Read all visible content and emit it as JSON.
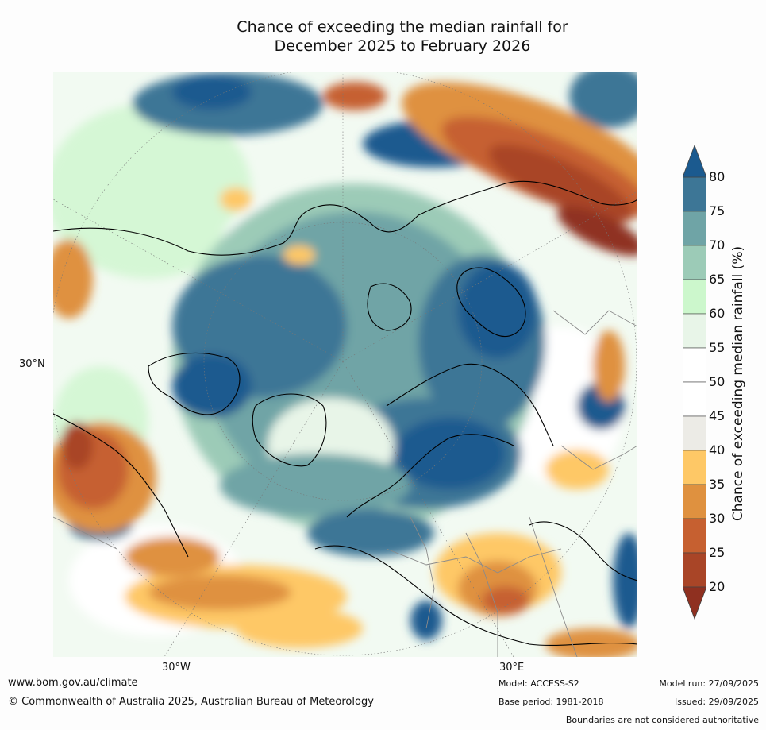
{
  "title_line1": "Chance of exceeding the median rainfall for",
  "title_line2": "December 2025 to February 2026",
  "map": {
    "lat_label": "30°N",
    "lon_labels": [
      "30°W",
      "30°E"
    ]
  },
  "legend": {
    "title": "Chance of exceeding median rainfall (%)",
    "ticks": [
      "80",
      "75",
      "70",
      "65",
      "60",
      "55",
      "50",
      "45",
      "40",
      "35",
      "30",
      "25",
      "20"
    ],
    "colors": {
      "above80": "#1b5a8f",
      "75_80": "#3d7696",
      "70_75": "#6fa4a6",
      "65_70": "#9ccbb7",
      "60_65": "#ccf7cc",
      "55_60": "#e8f5e8",
      "50_55": "#ffffff",
      "45_50": "#ffffff",
      "40_45": "#ecebe6",
      "35_40": "#fec866",
      "30_35": "#df913f",
      "25_30": "#c66030",
      "20_25": "#a94527",
      "below20": "#8f3020"
    }
  },
  "footer": {
    "url": "www.bom.gov.au/climate",
    "copyright": "© Commonwealth of Australia 2025, Australian Bureau of Meteorology",
    "model": "Model: ACCESS-S2",
    "base_period": "Base period: 1981-2018",
    "model_run": "Model run: 27/09/2025",
    "issued": "Issued: 29/09/2025",
    "disclaimer": "Boundaries are not considered authoritative"
  }
}
